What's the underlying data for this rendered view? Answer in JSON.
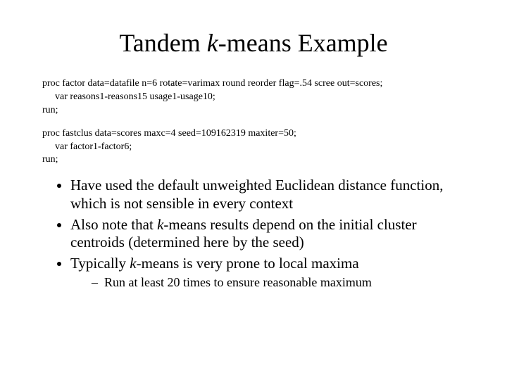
{
  "title_part1": "Tandem ",
  "title_italic": "k",
  "title_part2": "-means Example",
  "code1": {
    "line1": "proc factor data=datafile n=6 rotate=varimax round reorder flag=.54 scree out=scores;",
    "line2": "var reasons1-reasons15 usage1-usage10;",
    "line3": "run;"
  },
  "code2": {
    "line1": "proc fastclus data=scores maxc=4 seed=109162319 maxiter=50;",
    "line2": "var factor1-factor6;",
    "line3": "run;"
  },
  "bullets": {
    "b1": "Have used the default unweighted Euclidean distance function, which is not sensible in every context",
    "b2_pre": "Also note that ",
    "b2_italic": "k",
    "b2_post": "-means results depend on the initial cluster centroids (determined here by the seed)",
    "b3_pre": "Typically ",
    "b3_italic": "k",
    "b3_post": "-means is very prone to local maxima",
    "sub1": "Run at least 20 times to ensure reasonable maximum"
  }
}
